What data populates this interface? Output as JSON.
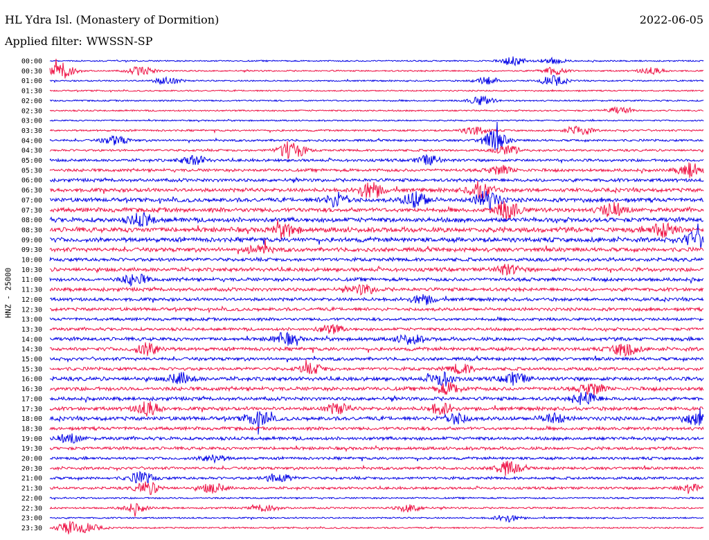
{
  "header": {
    "station": "HL Ydra Isl. (Monastery of Dormition)",
    "date": "2022-06-05",
    "filter_label": "Applied filter:",
    "filter_value": "WWSSN-SP"
  },
  "colors": {
    "trace_a": "#0000e6",
    "trace_b": "#ee1144",
    "text": "#000000",
    "background": "#ffffff"
  },
  "chart_data": {
    "type": "line",
    "ylabel": "HNZ - 25000",
    "row_labels": [
      "00:00",
      "00:30",
      "01:00",
      "01:30",
      "02:00",
      "02:30",
      "03:00",
      "03:30",
      "04:00",
      "04:30",
      "05:00",
      "05:30",
      "06:00",
      "06:30",
      "07:00",
      "07:30",
      "08:00",
      "08:30",
      "09:00",
      "09:30",
      "10:00",
      "10:30",
      "11:00",
      "11:30",
      "12:00",
      "12:30",
      "13:00",
      "13:30",
      "14:00",
      "14:30",
      "15:00",
      "15:30",
      "16:00",
      "16:30",
      "17:00",
      "17:30",
      "18:00",
      "18:30",
      "19:00",
      "19:30",
      "20:00",
      "20:30",
      "21:00",
      "21:30",
      "22:00",
      "22:30",
      "23:00",
      "23:30"
    ],
    "series_colors": [
      "trace_a",
      "trace_b"
    ],
    "noise_level": [
      0.1,
      0.12,
      0.1,
      0.1,
      0.12,
      0.12,
      0.1,
      0.18,
      0.25,
      0.25,
      0.35,
      0.4,
      0.45,
      0.55,
      0.6,
      0.65,
      0.7,
      0.75,
      0.7,
      0.6,
      0.5,
      0.55,
      0.5,
      0.5,
      0.45,
      0.45,
      0.4,
      0.4,
      0.5,
      0.5,
      0.45,
      0.45,
      0.55,
      0.55,
      0.5,
      0.5,
      0.55,
      0.45,
      0.45,
      0.4,
      0.35,
      0.35,
      0.35,
      0.3,
      0.15,
      0.18,
      0.12,
      0.12
    ],
    "events": [
      {
        "row": 0,
        "pos": 0.71,
        "amp": 0.9
      },
      {
        "row": 0,
        "pos": 0.77,
        "amp": 0.6
      },
      {
        "row": 1,
        "pos": 0.02,
        "amp": 1.8
      },
      {
        "row": 1,
        "pos": 0.14,
        "amp": 1.0
      },
      {
        "row": 1,
        "pos": 0.77,
        "amp": 0.8
      },
      {
        "row": 1,
        "pos": 0.92,
        "amp": 0.7
      },
      {
        "row": 2,
        "pos": 0.18,
        "amp": 0.9
      },
      {
        "row": 2,
        "pos": 0.67,
        "amp": 0.8
      },
      {
        "row": 2,
        "pos": 0.77,
        "amp": 1.1
      },
      {
        "row": 4,
        "pos": 0.66,
        "amp": 0.9
      },
      {
        "row": 5,
        "pos": 0.87,
        "amp": 0.7
      },
      {
        "row": 7,
        "pos": 0.65,
        "amp": 0.9
      },
      {
        "row": 7,
        "pos": 0.81,
        "amp": 1.0
      },
      {
        "row": 8,
        "pos": 0.1,
        "amp": 1.0
      },
      {
        "row": 8,
        "pos": 0.68,
        "amp": 2.0
      },
      {
        "row": 9,
        "pos": 0.37,
        "amp": 2.2
      },
      {
        "row": 9,
        "pos": 0.7,
        "amp": 1.0
      },
      {
        "row": 10,
        "pos": 0.22,
        "amp": 1.0
      },
      {
        "row": 10,
        "pos": 0.58,
        "amp": 1.0
      },
      {
        "row": 11,
        "pos": 0.69,
        "amp": 0.9
      },
      {
        "row": 11,
        "pos": 0.98,
        "amp": 1.5
      },
      {
        "row": 13,
        "pos": 0.49,
        "amp": 1.8
      },
      {
        "row": 13,
        "pos": 0.66,
        "amp": 1.8
      },
      {
        "row": 14,
        "pos": 0.44,
        "amp": 1.5
      },
      {
        "row": 14,
        "pos": 0.56,
        "amp": 1.8
      },
      {
        "row": 14,
        "pos": 0.67,
        "amp": 2.0
      },
      {
        "row": 15,
        "pos": 0.7,
        "amp": 2.0
      },
      {
        "row": 15,
        "pos": 0.86,
        "amp": 1.5
      },
      {
        "row": 16,
        "pos": 0.14,
        "amp": 1.3
      },
      {
        "row": 17,
        "pos": 0.36,
        "amp": 1.2
      },
      {
        "row": 17,
        "pos": 0.94,
        "amp": 1.6
      },
      {
        "row": 18,
        "pos": 0.99,
        "amp": 1.8
      },
      {
        "row": 19,
        "pos": 0.32,
        "amp": 1.0
      },
      {
        "row": 21,
        "pos": 0.7,
        "amp": 1.0
      },
      {
        "row": 22,
        "pos": 0.13,
        "amp": 1.2
      },
      {
        "row": 23,
        "pos": 0.48,
        "amp": 1.0
      },
      {
        "row": 24,
        "pos": 0.57,
        "amp": 1.0
      },
      {
        "row": 27,
        "pos": 0.43,
        "amp": 0.9
      },
      {
        "row": 28,
        "pos": 0.36,
        "amp": 1.2
      },
      {
        "row": 28,
        "pos": 0.55,
        "amp": 1.0
      },
      {
        "row": 29,
        "pos": 0.15,
        "amp": 1.3
      },
      {
        "row": 29,
        "pos": 0.88,
        "amp": 1.5
      },
      {
        "row": 31,
        "pos": 0.4,
        "amp": 1.0
      },
      {
        "row": 31,
        "pos": 0.63,
        "amp": 1.0
      },
      {
        "row": 32,
        "pos": 0.2,
        "amp": 1.2
      },
      {
        "row": 32,
        "pos": 0.6,
        "amp": 1.4
      },
      {
        "row": 32,
        "pos": 0.71,
        "amp": 1.2
      },
      {
        "row": 33,
        "pos": 0.61,
        "amp": 1.2
      },
      {
        "row": 33,
        "pos": 0.83,
        "amp": 1.2
      },
      {
        "row": 34,
        "pos": 0.82,
        "amp": 1.3
      },
      {
        "row": 35,
        "pos": 0.15,
        "amp": 1.5
      },
      {
        "row": 35,
        "pos": 0.44,
        "amp": 1.1
      },
      {
        "row": 35,
        "pos": 0.6,
        "amp": 1.2
      },
      {
        "row": 36,
        "pos": 0.32,
        "amp": 1.6
      },
      {
        "row": 36,
        "pos": 0.62,
        "amp": 1.2
      },
      {
        "row": 36,
        "pos": 0.77,
        "amp": 1.0
      },
      {
        "row": 36,
        "pos": 0.99,
        "amp": 1.2
      },
      {
        "row": 38,
        "pos": 0.03,
        "amp": 0.9
      },
      {
        "row": 40,
        "pos": 0.25,
        "amp": 0.8
      },
      {
        "row": 41,
        "pos": 0.7,
        "amp": 1.5
      },
      {
        "row": 42,
        "pos": 0.14,
        "amp": 1.2
      },
      {
        "row": 42,
        "pos": 0.35,
        "amp": 1.0
      },
      {
        "row": 43,
        "pos": 0.15,
        "amp": 1.3
      },
      {
        "row": 43,
        "pos": 0.25,
        "amp": 1.0
      },
      {
        "row": 43,
        "pos": 0.98,
        "amp": 0.9
      },
      {
        "row": 45,
        "pos": 0.13,
        "amp": 0.9
      },
      {
        "row": 45,
        "pos": 0.33,
        "amp": 0.8
      },
      {
        "row": 45,
        "pos": 0.55,
        "amp": 0.8
      },
      {
        "row": 46,
        "pos": 0.7,
        "amp": 0.8
      },
      {
        "row": 47,
        "pos": 0.03,
        "amp": 1.3
      },
      {
        "row": 47,
        "pos": 0.06,
        "amp": 0.8
      }
    ]
  }
}
